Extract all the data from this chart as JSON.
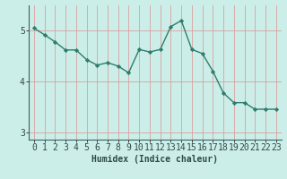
{
  "x": [
    0,
    1,
    2,
    3,
    4,
    5,
    6,
    7,
    8,
    9,
    10,
    11,
    12,
    13,
    14,
    15,
    16,
    17,
    18,
    19,
    20,
    21,
    22,
    23
  ],
  "y": [
    5.05,
    4.92,
    4.78,
    4.62,
    4.62,
    4.43,
    4.32,
    4.37,
    4.3,
    4.17,
    4.63,
    4.58,
    4.63,
    5.08,
    5.2,
    4.63,
    4.55,
    4.2,
    3.77,
    3.58,
    3.58,
    3.45,
    3.45,
    3.45
  ],
  "line_color": "#2e7d6e",
  "marker": "D",
  "marker_size": 2.2,
  "background_color": "#cceee8",
  "grid_color": "#daa0a0",
  "xlabel": "Humidex (Indice chaleur)",
  "xlim": [
    -0.5,
    23.5
  ],
  "ylim": [
    2.85,
    5.5
  ],
  "yticks": [
    3,
    4,
    5
  ],
  "xticks": [
    0,
    1,
    2,
    3,
    4,
    5,
    6,
    7,
    8,
    9,
    10,
    11,
    12,
    13,
    14,
    15,
    16,
    17,
    18,
    19,
    20,
    21,
    22,
    23
  ],
  "xlabel_fontsize": 7,
  "tick_fontsize": 7,
  "line_width": 1.0
}
